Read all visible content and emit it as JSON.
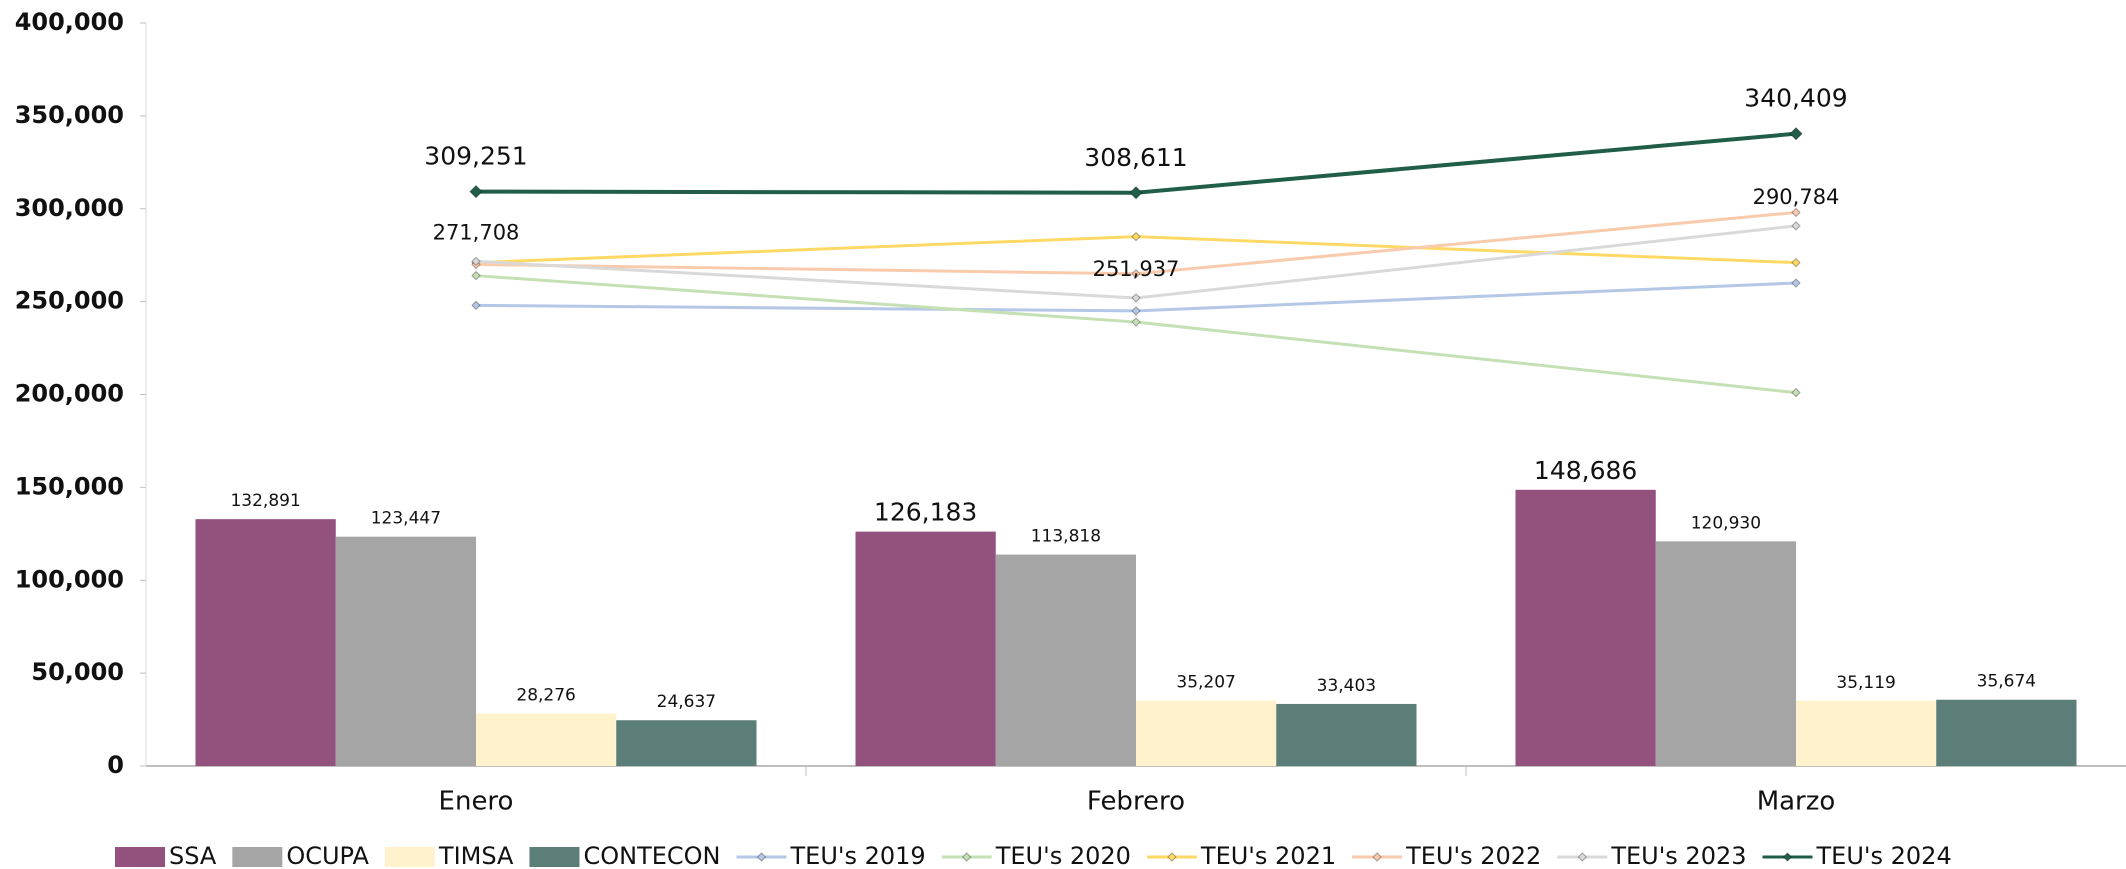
{
  "chart_data": {
    "type": "bar",
    "categories": [
      "Enero",
      "Febrero",
      "Marzo"
    ],
    "ylim": [
      0,
      400000
    ],
    "yticks": [
      {
        "value": 0,
        "label": "0"
      },
      {
        "value": 50000,
        "label": "50,000"
      },
      {
        "value": 100000,
        "label": "100,000"
      },
      {
        "value": 150000,
        "label": "150,000"
      },
      {
        "value": 200000,
        "label": "200,000"
      },
      {
        "value": 250000,
        "label": "250,000"
      },
      {
        "value": 300000,
        "label": "300,000"
      },
      {
        "value": 350000,
        "label": "350,000"
      },
      {
        "value": 400000,
        "label": "400,000"
      }
    ],
    "legend": "bottom",
    "series": [
      {
        "name": "SSA",
        "type": "bar",
        "color": "#93527d",
        "values": [
          132891,
          126183,
          148686
        ],
        "value_labels": [
          "132,891",
          "126,183",
          "148,686"
        ]
      },
      {
        "name": "OCUPA",
        "type": "bar",
        "color": "#a5a5a5",
        "values": [
          123447,
          113818,
          120930
        ],
        "value_labels": [
          "123,447",
          "113,818",
          "120,930"
        ]
      },
      {
        "name": "TIMSA",
        "type": "bar",
        "color": "#fff2cc",
        "values": [
          28276,
          35207,
          35119
        ],
        "value_labels": [
          "28,276",
          "35,207",
          "35,119"
        ]
      },
      {
        "name": "CONTECON",
        "type": "bar",
        "color": "#5b7e78",
        "values": [
          24637,
          33403,
          35674
        ],
        "value_labels": [
          "24,637",
          "33,403",
          "35,674"
        ]
      },
      {
        "name": "TEU's 2019",
        "type": "line",
        "color": "#b4c7e7",
        "values": [
          248000,
          245000,
          260000
        ]
      },
      {
        "name": "TEU's 2020",
        "type": "line",
        "color": "#c5e0b4",
        "values": [
          264000,
          239000,
          201000
        ]
      },
      {
        "name": "TEU's 2021",
        "type": "line",
        "color": "#ffd966",
        "values": [
          271000,
          285000,
          271000
        ]
      },
      {
        "name": "TEU's 2022",
        "type": "line",
        "color": "#f8cbad",
        "values": [
          270000,
          265000,
          298000
        ]
      },
      {
        "name": "TEU's 2023",
        "type": "line",
        "color": "#d9d9d9",
        "values": [
          271708,
          251937,
          290784
        ],
        "value_labels": [
          "271,708",
          "251,937",
          "290,784"
        ]
      },
      {
        "name": "TEU's 2024",
        "type": "line",
        "color": "#215e48",
        "values": [
          309251,
          308611,
          340409
        ],
        "value_labels": [
          "309,251",
          "308,611",
          "340,409"
        ]
      }
    ]
  }
}
